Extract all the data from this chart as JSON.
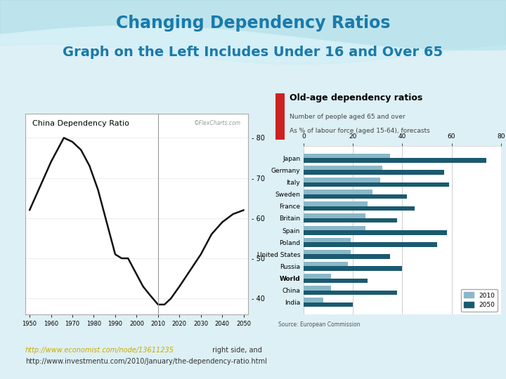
{
  "title1": "Changing Dependency Ratios",
  "title2": "Graph on the Left Includes Under 16 and Over 65",
  "title1_color": "#1a7aaa",
  "title2_color": "#1a7aaa",
  "bg_color": "#ddf0f5",
  "footer_link": "http://www.economist.com/node/13611235",
  "footer_text1": " right side, and",
  "footer_text2": "http://www.investmentu.com/2010/January/the-dependency-ratio.html",
  "left_chart": {
    "title": "China Dependency Ratio",
    "watermark": "©FlexCharts.com",
    "bg": "#ffffff",
    "outer_bg": "#e8eef2",
    "border": "#aaaaaa",
    "line_color": "#111111",
    "line_width": 1.8,
    "yticks": [
      40,
      50,
      60,
      70,
      80
    ],
    "ylim": [
      36,
      86
    ],
    "xticks": [
      1950,
      1960,
      1970,
      1980,
      1990,
      2000,
      2010,
      2020,
      2030,
      2040,
      2050
    ],
    "vline_x": 2010,
    "vline_color": "#999999",
    "data_x": [
      1950,
      1955,
      1960,
      1963,
      1966,
      1970,
      1974,
      1978,
      1982,
      1986,
      1990,
      1993,
      1996,
      2000,
      2003,
      2006,
      2010,
      2013,
      2016,
      2020,
      2025,
      2030,
      2035,
      2040,
      2045,
      2050
    ],
    "data_y": [
      62,
      68,
      74,
      77,
      80,
      79,
      77,
      73,
      67,
      59,
      51,
      50,
      50,
      46,
      43,
      41,
      38.5,
      38.5,
      40,
      43,
      47,
      51,
      56,
      59,
      61,
      62
    ]
  },
  "right_chart": {
    "title": "Old-age dependency ratios",
    "subtitle1": "Number of people aged 65 and over",
    "subtitle2": "As % of labour force (aged 15-64), forecasts",
    "title_bg": "#cc2222",
    "title_red_block": "#cc2222",
    "bg": "#ffffff",
    "border": "#cccccc",
    "bar_color_2010": "#8ab8c8",
    "bar_color_2050": "#1a5a70",
    "source": "Source: European Commission",
    "xlim": [
      0,
      80
    ],
    "xticks": [
      0,
      20,
      40,
      60,
      80
    ],
    "categories": [
      "Japan",
      "Germany",
      "Italy",
      "Sweden",
      "France",
      "Britain",
      "Spain",
      "Poland",
      "United States",
      "Russia",
      "World",
      "China",
      "India"
    ],
    "values_2010": [
      35,
      32,
      31,
      28,
      26,
      25,
      25,
      19,
      19,
      18,
      11,
      11,
      8
    ],
    "values_2050": [
      74,
      57,
      59,
      42,
      45,
      38,
      58,
      54,
      35,
      40,
      26,
      38,
      20
    ]
  }
}
